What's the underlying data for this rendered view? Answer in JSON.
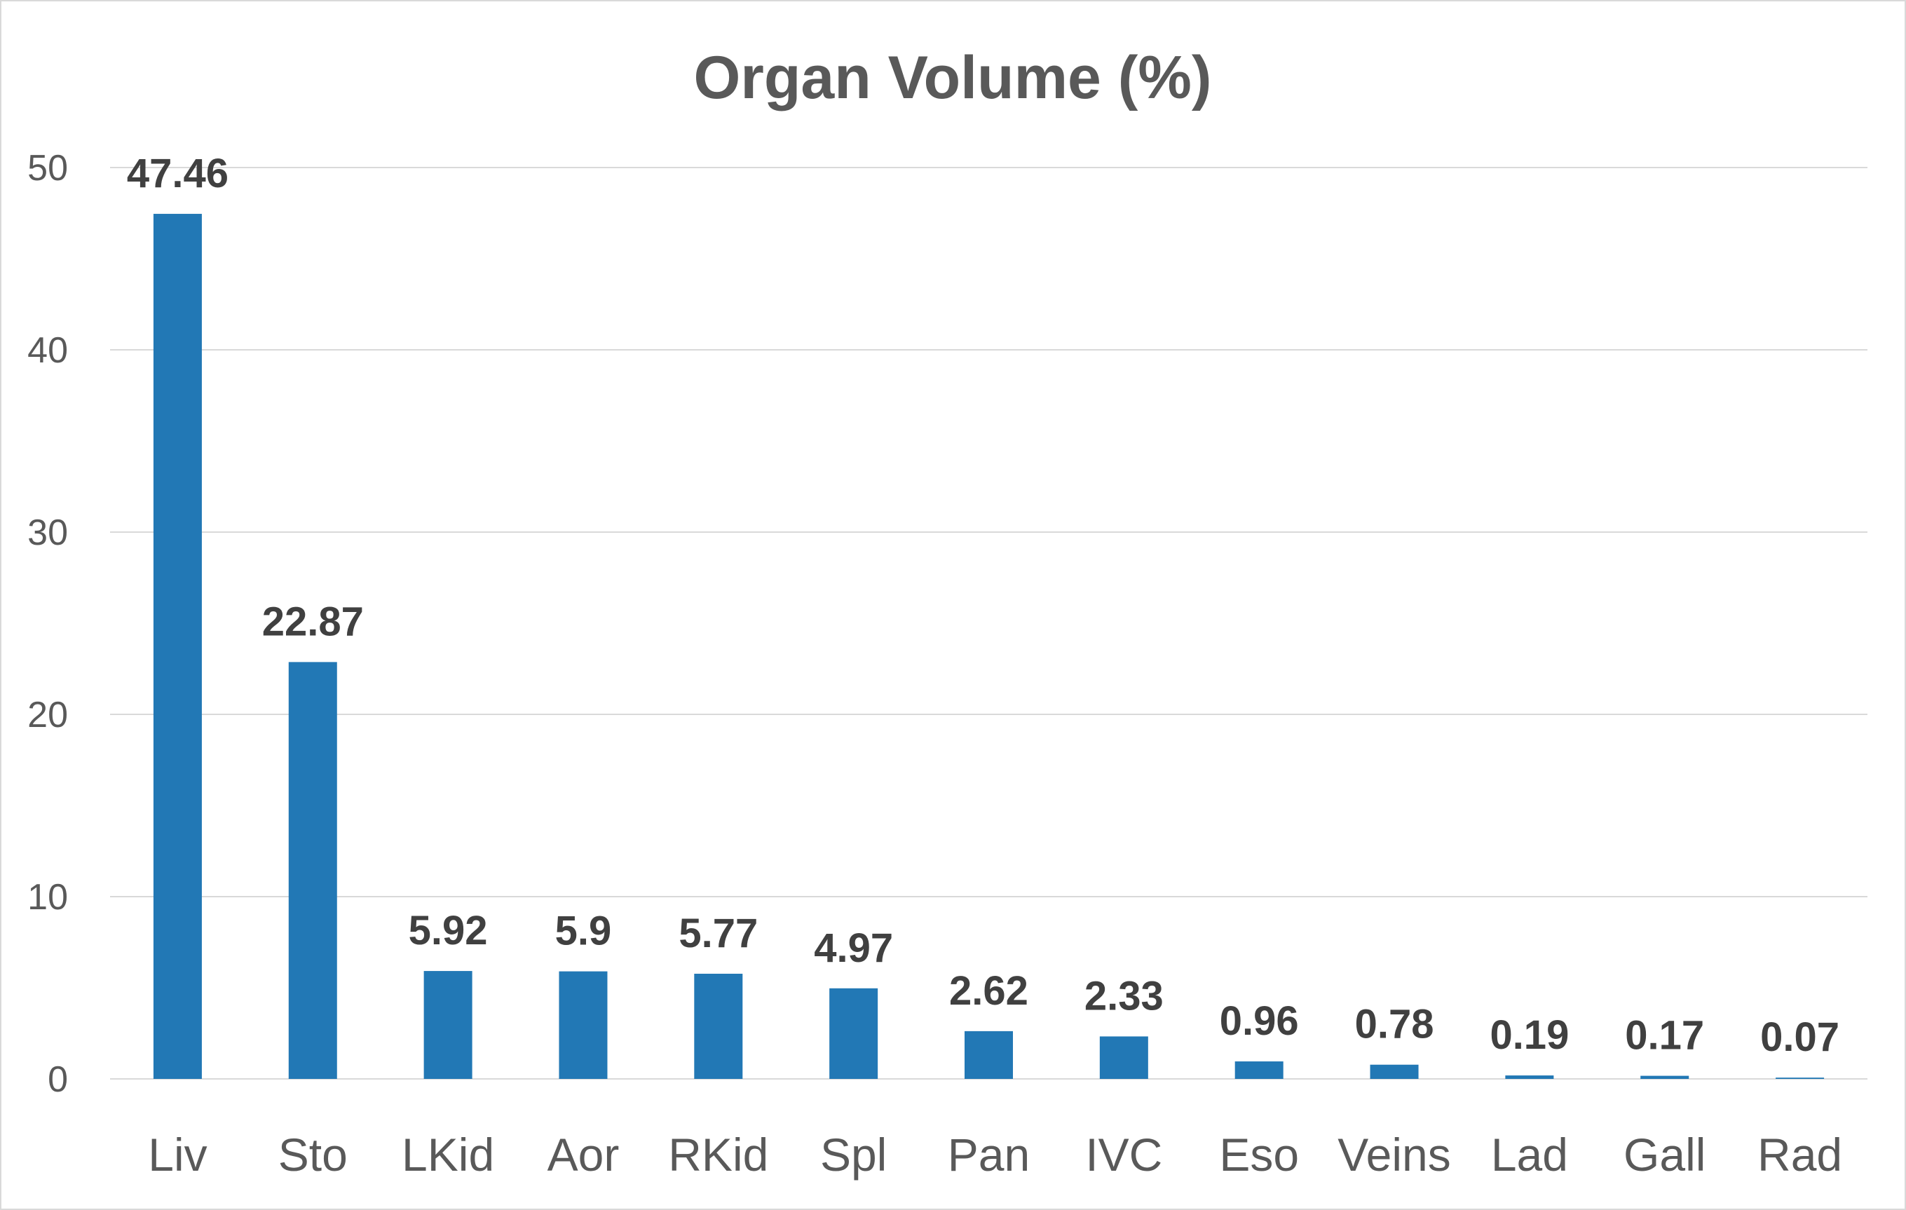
{
  "chart_data": {
    "type": "bar",
    "title": "Organ Volume (%)",
    "xlabel": "",
    "ylabel": "",
    "categories": [
      "Liv",
      "Sto",
      "LKid",
      "Aor",
      "RKid",
      "Spl",
      "Pan",
      "IVC",
      "Eso",
      "Veins",
      "Lad",
      "Gall",
      "Rad"
    ],
    "values": [
      47.46,
      22.87,
      5.92,
      5.9,
      5.77,
      4.97,
      2.62,
      2.33,
      0.96,
      0.78,
      0.19,
      0.17,
      0.07
    ],
    "data_labels": [
      "47.46",
      "22.87",
      "5.92",
      "5.9",
      "5.77",
      "4.97",
      "2.62",
      "2.33",
      "0.96",
      "0.78",
      "0.19",
      "0.17",
      "0.07"
    ],
    "ylim": [
      0,
      50
    ],
    "y_ticks": [
      0,
      10,
      20,
      30,
      40,
      50
    ],
    "grid": true,
    "legend": "none",
    "bar_color": "#2278b5",
    "grid_color": "#d9d9d9",
    "text_color": "#595959"
  }
}
